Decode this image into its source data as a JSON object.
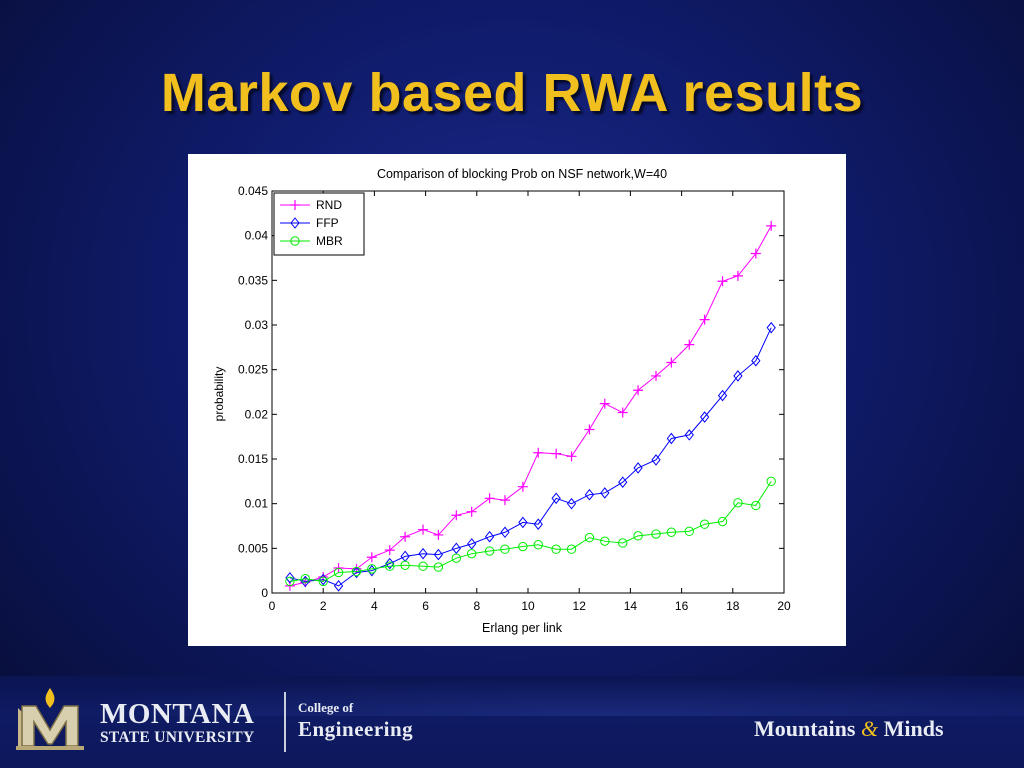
{
  "slide": {
    "title": "Markov based RWA results"
  },
  "chart_data": {
    "type": "line",
    "title": "Comparison of blocking Prob on NSF network,W=40",
    "xlabel": "Erlang per link",
    "ylabel": "probability",
    "xlim": [
      0,
      20
    ],
    "ylim": [
      0,
      0.045
    ],
    "xticks": [
      "0",
      "2",
      "4",
      "6",
      "8",
      "10",
      "12",
      "14",
      "16",
      "18",
      "20"
    ],
    "yticks": [
      "0",
      "0.005",
      "0.01",
      "0.015",
      "0.02",
      "0.025",
      "0.03",
      "0.035",
      "0.04",
      "0.045"
    ],
    "grid": false,
    "legend": "top-left",
    "x": [
      0.7,
      1.3,
      2.0,
      2.6,
      3.3,
      3.9,
      4.6,
      5.2,
      5.9,
      6.5,
      7.2,
      7.8,
      8.5,
      9.1,
      9.8,
      10.4,
      11.1,
      11.7,
      12.4,
      13.0,
      13.7,
      14.3,
      15.0,
      15.6,
      16.3,
      16.9,
      17.6,
      18.2,
      18.9,
      19.5
    ],
    "series": [
      {
        "name": "RND",
        "color": "#ff00ff",
        "marker": "plus",
        "values": [
          0.0008,
          0.0012,
          0.0018,
          0.0028,
          0.0027,
          0.004,
          0.0048,
          0.0063,
          0.0071,
          0.0065,
          0.0087,
          0.0091,
          0.0106,
          0.0104,
          0.0119,
          0.0157,
          0.0156,
          0.0153,
          0.0183,
          0.0212,
          0.0202,
          0.0227,
          0.0243,
          0.0258,
          0.0278,
          0.0306,
          0.0349,
          0.0355,
          0.038,
          0.0411
        ]
      },
      {
        "name": "FFP",
        "color": "#0000ff",
        "marker": "diamond",
        "values": [
          0.0017,
          0.0013,
          0.0015,
          0.0008,
          0.0023,
          0.0025,
          0.0033,
          0.0041,
          0.0044,
          0.0043,
          0.005,
          0.0055,
          0.0063,
          0.0068,
          0.0079,
          0.0077,
          0.0106,
          0.01,
          0.011,
          0.0112,
          0.0124,
          0.014,
          0.0149,
          0.0173,
          0.0177,
          0.0197,
          0.0221,
          0.0243,
          0.026,
          0.0297
        ]
      },
      {
        "name": "MBR",
        "color": "#00ee00",
        "marker": "circle",
        "values": [
          0.0013,
          0.0016,
          0.0013,
          0.0023,
          0.0024,
          0.0027,
          0.003,
          0.0031,
          0.003,
          0.0029,
          0.0039,
          0.0044,
          0.0047,
          0.0049,
          0.0052,
          0.0054,
          0.0049,
          0.0049,
          0.0062,
          0.0058,
          0.0056,
          0.0064,
          0.0066,
          0.0068,
          0.0069,
          0.0077,
          0.008,
          0.0101,
          0.0098,
          0.0125
        ]
      }
    ]
  },
  "footer": {
    "university_line1": "MONTANA",
    "university_line2": "STATE UNIVERSITY",
    "college_line1": "College of",
    "college_line2": "Engineering",
    "tagline_part1": "Mountains",
    "tagline_amp": "&",
    "tagline_part2": "Minds",
    "logo_icon": "msu-m-logo-icon",
    "accent_color": "#f2c01e"
  }
}
